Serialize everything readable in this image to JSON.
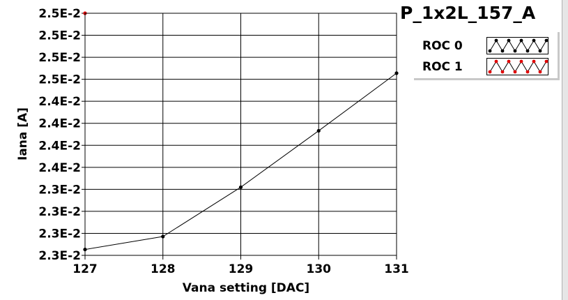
{
  "chart_data": {
    "type": "line",
    "title": "P_1x2L_157_A",
    "xlabel": "Vana setting [DAC]",
    "ylabel": "Iana [A]",
    "x_ticks": [
      "127",
      "128",
      "129",
      "130",
      "131"
    ],
    "y_ticks": [
      "2.3E-2",
      "2.3E-2",
      "2.3E-2",
      "2.3E-2",
      "2.4E-2",
      "2.4E-2",
      "2.4E-2",
      "2.4E-2",
      "2.5E-2",
      "2.5E-2",
      "2.5E-2",
      "2.5E-2"
    ],
    "xlim": [
      127,
      131
    ],
    "ylim": [
      0.02293,
      0.02499
    ],
    "grid": true,
    "legend_position": "top-right",
    "series": [
      {
        "name": "ROC 0",
        "color": "#000000",
        "x": [
          127,
          128,
          129,
          130,
          131
        ],
        "y": [
          0.02298,
          0.02309,
          0.02351,
          0.02399,
          0.02448
        ]
      },
      {
        "name": "ROC 1",
        "color": "#e00000",
        "x": [
          127
        ],
        "y": [
          0.02499
        ]
      }
    ]
  }
}
